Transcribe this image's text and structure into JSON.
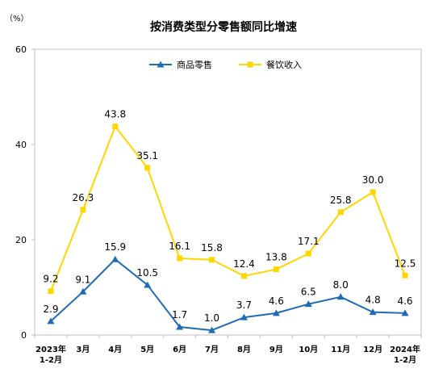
{
  "chart_data": {
    "type": "line",
    "title": "按消费类型分零售额同比增速",
    "y_unit": "（%）",
    "ylim": [
      0,
      60
    ],
    "yticks": [
      0,
      20,
      40,
      60
    ],
    "categories": [
      [
        "2023年",
        "1-2月"
      ],
      [
        "3月"
      ],
      [
        "4月"
      ],
      [
        "5月"
      ],
      [
        "6月"
      ],
      [
        "7月"
      ],
      [
        "8月"
      ],
      [
        "9月"
      ],
      [
        "10月"
      ],
      [
        "11月"
      ],
      [
        "12月"
      ],
      [
        "2024年",
        "1-2月"
      ]
    ],
    "series": [
      {
        "name": "商品零售",
        "color": "#1f6bb5",
        "marker": "triangle",
        "values": [
          2.9,
          9.1,
          15.9,
          10.5,
          1.7,
          1.0,
          3.7,
          4.6,
          6.5,
          8.0,
          4.8,
          4.6
        ]
      },
      {
        "name": "餐饮收入",
        "color": "#ffd700",
        "marker": "square",
        "values": [
          9.2,
          26.3,
          43.8,
          35.1,
          16.1,
          15.8,
          12.4,
          13.8,
          17.1,
          25.8,
          30.0,
          12.5
        ]
      }
    ],
    "labels": [
      [
        "2.9",
        "9.1",
        "15.9",
        "10.5",
        "1.7",
        "1.0",
        "3.7",
        "4.6",
        "6.5",
        "8.0",
        "4.8",
        "4.6"
      ],
      [
        "9.2",
        "26.3",
        "43.8",
        "35.1",
        "16.1",
        "15.8",
        "12.4",
        "13.8",
        "17.1",
        "25.8",
        "30.0",
        "12.5"
      ]
    ],
    "grid": false,
    "legend": "top-center"
  }
}
